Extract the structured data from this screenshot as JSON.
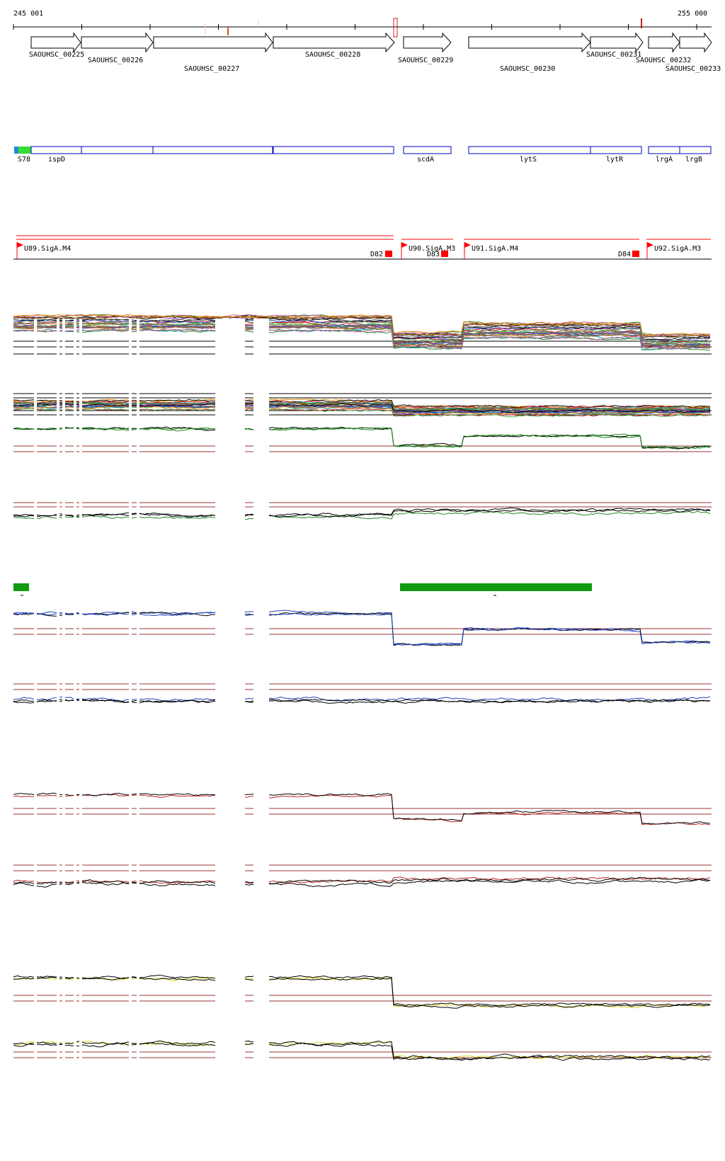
{
  "ruler": {
    "start_label": "245 001",
    "end_label": "255 000"
  },
  "genes": [
    {
      "label": "SAOUHSC_00225"
    },
    {
      "label": "SAOUHSC_00226"
    },
    {
      "label": "SAOUHSC_00227"
    },
    {
      "label": "SAOUHSC_00228"
    },
    {
      "label": "SAOUHSC_00229"
    },
    {
      "label": "SAOUHSC_00230"
    },
    {
      "label": "SAOUHSC_00231"
    },
    {
      "label": "SAOUHSC_00232"
    },
    {
      "label": "SAOUHSC_00233"
    }
  ],
  "annotations": [
    {
      "label": "S78"
    },
    {
      "label": "ispD"
    },
    {
      "label": "scdA"
    },
    {
      "label": "lytS"
    },
    {
      "label": "lytR"
    },
    {
      "label": "lrgA"
    },
    {
      "label": "lrgB"
    }
  ],
  "promoters": [
    {
      "label": "U89.SigA.M4"
    },
    {
      "label": "U90.SigA.M3"
    },
    {
      "label": "U91.SigA.M4"
    },
    {
      "label": "U92.SigA.M3"
    }
  ],
  "terminators": [
    {
      "label": "D82"
    },
    {
      "label": "D83"
    },
    {
      "label": "D84"
    }
  ],
  "track_colors": {
    "gene_stroke": "#000000",
    "annotation_box": "#0000cc",
    "annotation_green": "#33dd33",
    "promoter_red": "#ff0000",
    "threshold_line": "#993333",
    "green_track": "#228822",
    "blue_track": "#2244bb",
    "red_track": "#bb2222",
    "yellow_track": "#dddd22",
    "segment_bar": "#119911"
  },
  "icons": [
    "promoter-flag-icon",
    "terminator-block-icon",
    "gene-arrow-icon"
  ]
}
